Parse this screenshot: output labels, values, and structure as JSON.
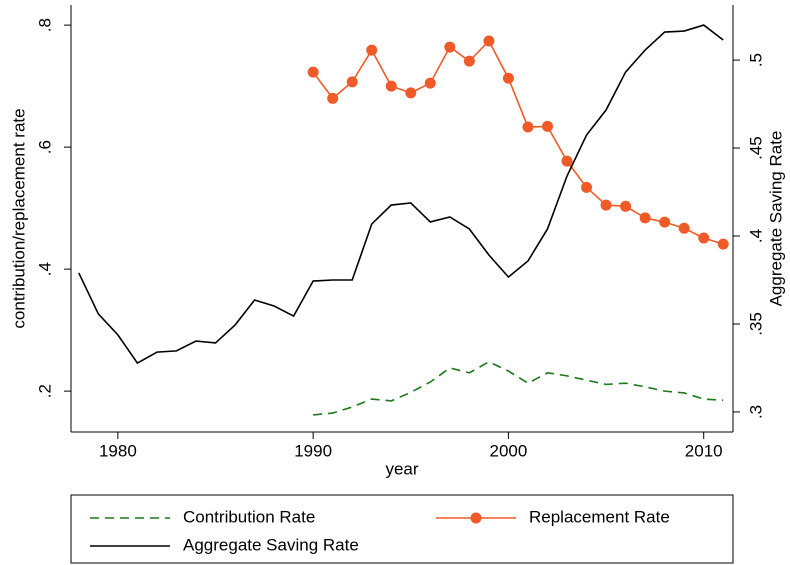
{
  "chart_data": {
    "type": "line",
    "x_label": "year",
    "y_label": "contribution/replacement rate",
    "y2_label": "Aggregate Saving Rate",
    "x": [
      1978,
      1979,
      1980,
      1981,
      1982,
      1983,
      1984,
      1985,
      1986,
      1987,
      1988,
      1989,
      1990,
      1991,
      1992,
      1993,
      1994,
      1995,
      1996,
      1997,
      1998,
      1999,
      2000,
      2001,
      2002,
      2003,
      2004,
      2005,
      2006,
      2007,
      2008,
      2009,
      2010,
      2011
    ],
    "xlim": [
      1977.6,
      2011.5
    ],
    "xticks": [
      1980,
      1990,
      2000,
      2010
    ],
    "ylim": [
      0.133,
      0.833
    ],
    "yticks": [
      {
        "value": 0.2,
        "label": ".2"
      },
      {
        "value": 0.4,
        "label": ".4"
      },
      {
        "value": 0.6,
        "label": ".6"
      },
      {
        "value": 0.8,
        "label": ".8"
      }
    ],
    "y2lim": [
      0.2886,
      0.5313
    ],
    "y2ticks": [
      {
        "value": 0.3,
        "label": ".3"
      },
      {
        "value": 0.35,
        "label": ".35"
      },
      {
        "value": 0.4,
        "label": ".4"
      },
      {
        "value": 0.45,
        "label": ".45"
      },
      {
        "value": 0.5,
        "label": ".5"
      }
    ],
    "grid": false,
    "legend": "bottom",
    "series": [
      {
        "name": "Contribution Rate",
        "color": "#1a7a1a",
        "style": "dashed",
        "axis": "y",
        "values": [
          null,
          null,
          null,
          null,
          null,
          null,
          null,
          null,
          null,
          null,
          null,
          null,
          0.161,
          0.164,
          0.174,
          0.187,
          0.184,
          0.198,
          0.215,
          0.238,
          0.23,
          0.248,
          0.233,
          0.213,
          0.23,
          0.225,
          0.218,
          0.211,
          0.213,
          0.207,
          0.2,
          0.197,
          0.187,
          0.185
        ]
      },
      {
        "name": "Replacement Rate",
        "color": "#f05a28",
        "style": "solid",
        "marker": "circle",
        "axis": "y",
        "values": [
          null,
          null,
          null,
          null,
          null,
          null,
          null,
          null,
          null,
          null,
          null,
          null,
          0.723,
          0.68,
          0.707,
          0.759,
          0.7,
          0.689,
          0.705,
          0.764,
          0.741,
          0.774,
          0.713,
          0.633,
          0.634,
          0.577,
          0.534,
          0.505,
          0.503,
          0.484,
          0.477,
          0.467,
          0.451,
          0.441
        ]
      },
      {
        "name": "Aggregate Saving Rate",
        "color": "#000000",
        "style": "solid",
        "axis": "y2",
        "values": [
          0.379,
          0.3557,
          0.3438,
          0.3278,
          0.334,
          0.3347,
          0.3403,
          0.3392,
          0.3494,
          0.3636,
          0.3602,
          0.3545,
          0.3744,
          0.375,
          0.375,
          0.4068,
          0.4176,
          0.4188,
          0.408,
          0.4108,
          0.404,
          0.3892,
          0.3767,
          0.3858,
          0.404,
          0.4341,
          0.4574,
          0.4716,
          0.4932,
          0.5057,
          0.5159,
          0.5165,
          0.5199,
          0.5114
        ]
      }
    ]
  }
}
